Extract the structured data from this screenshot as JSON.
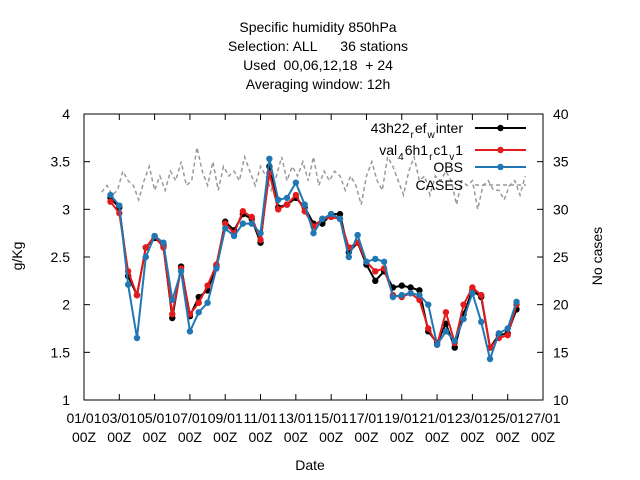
{
  "chart_data": {
    "type": "line",
    "title_lines": [
      "Specific humidity 850hPa",
      "Selection: ALL      36 stations",
      "Used  00,06,12,18  + 24",
      "Averaging window: 12h"
    ],
    "xlabel": "Date",
    "ylabel": "g/Kg",
    "y2label": "No cases",
    "xlim": [
      0,
      26
    ],
    "ylim": [
      1,
      4
    ],
    "y2lim": [
      10,
      40
    ],
    "x_ticks": [
      {
        "value": 0,
        "line1": "01/01",
        "line2": "00Z"
      },
      {
        "value": 2,
        "line1": "03/01",
        "line2": "00Z"
      },
      {
        "value": 4,
        "line1": "05/01",
        "line2": "00Z"
      },
      {
        "value": 6,
        "line1": "07/01",
        "line2": "00Z"
      },
      {
        "value": 8,
        "line1": "09/01",
        "line2": "00Z"
      },
      {
        "value": 10,
        "line1": "11/01",
        "line2": "00Z"
      },
      {
        "value": 12,
        "line1": "13/01",
        "line2": "00Z"
      },
      {
        "value": 14,
        "line1": "15/01",
        "line2": "00Z"
      },
      {
        "value": 16,
        "line1": "17/01",
        "line2": "00Z"
      },
      {
        "value": 18,
        "line1": "19/01",
        "line2": "00Z"
      },
      {
        "value": 20,
        "line1": "21/01",
        "line2": "00Z"
      },
      {
        "value": 22,
        "line1": "23/01",
        "line2": "00Z"
      },
      {
        "value": 24,
        "line1": "25/01",
        "line2": "00Z"
      },
      {
        "value": 26,
        "line1": "27/01",
        "line2": "00Z"
      }
    ],
    "y_ticks": [
      "1",
      "1.5",
      "2",
      "2.5",
      "3",
      "3.5",
      "4"
    ],
    "y2_ticks": [
      "10",
      "15",
      "20",
      "25",
      "30",
      "35",
      "40"
    ],
    "legend_position": "top-right",
    "grid": false,
    "x": [
      1.5,
      2.0,
      2.5,
      3.0,
      3.5,
      4.0,
      4.5,
      5.0,
      5.5,
      6.0,
      6.5,
      7.0,
      7.5,
      8.0,
      8.5,
      9.0,
      9.5,
      10.0,
      10.5,
      11.0,
      11.5,
      12.0,
      12.5,
      13.0,
      13.5,
      14.0,
      14.5,
      15.0,
      15.5,
      16.0,
      16.5,
      17.0,
      17.5,
      18.0,
      18.5,
      19.0,
      19.5,
      20.0,
      20.5,
      21.0,
      21.5,
      22.0,
      22.5,
      23.0,
      23.5,
      24.0,
      24.5
    ],
    "series": [
      {
        "name": "43h22_r ef_w inter",
        "legend_label": {
          "t1": "43h22",
          "s1": "r",
          "t2": "ef",
          "s2": "w",
          "t3": "inter"
        },
        "color": "#000000",
        "axis": "left",
        "values": [
          3.12,
          3.02,
          2.3,
          2.1,
          2.6,
          2.7,
          2.62,
          1.86,
          2.4,
          1.88,
          2.08,
          2.15,
          2.4,
          2.87,
          2.78,
          2.95,
          2.9,
          2.65,
          3.45,
          3.02,
          3.05,
          3.12,
          3.02,
          2.85,
          2.85,
          2.95,
          2.95,
          2.55,
          2.65,
          2.42,
          2.25,
          2.35,
          2.18,
          2.2,
          2.18,
          2.15,
          1.72,
          1.6,
          1.8,
          1.55,
          1.9,
          2.15,
          2.08,
          1.55,
          1.68,
          1.7,
          1.95
        ]
      },
      {
        "name": "val_4 6h1_r c1_v 1",
        "legend_label": {
          "t1": "val",
          "s1": "4",
          "t2": "6h1",
          "s2": "r",
          "t3": "c1",
          "s3": "v",
          "t4": "1"
        },
        "color": "#e41a1c",
        "axis": "left",
        "values": [
          3.08,
          2.96,
          2.35,
          2.1,
          2.6,
          2.72,
          2.6,
          1.9,
          2.38,
          1.9,
          2.02,
          2.2,
          2.42,
          2.85,
          2.75,
          2.98,
          2.92,
          2.68,
          3.38,
          3.0,
          3.05,
          3.15,
          2.98,
          2.82,
          2.9,
          2.92,
          2.9,
          2.6,
          2.65,
          2.45,
          2.35,
          2.38,
          2.1,
          2.08,
          2.12,
          2.05,
          1.75,
          1.58,
          1.92,
          1.6,
          2.0,
          2.18,
          2.1,
          1.55,
          1.65,
          1.68,
          2.0
        ]
      },
      {
        "name": "OBS",
        "legend_label": {
          "t1": "OBS"
        },
        "color": "#1f78b4",
        "axis": "left",
        "values": [
          3.15,
          3.04,
          2.21,
          1.65,
          2.5,
          2.72,
          2.65,
          2.05,
          2.35,
          1.72,
          1.92,
          2.02,
          2.38,
          2.8,
          2.72,
          2.85,
          2.85,
          2.75,
          3.53,
          3.1,
          3.12,
          3.28,
          3.05,
          2.75,
          2.9,
          2.95,
          2.9,
          2.5,
          2.73,
          2.45,
          2.48,
          2.45,
          2.08,
          2.1,
          2.12,
          2.1,
          2.0,
          1.58,
          1.72,
          1.62,
          1.85,
          2.12,
          1.82,
          1.43,
          1.7,
          1.75,
          2.03
        ]
      },
      {
        "name": "CASES",
        "legend_label": {
          "t1": "CASES"
        },
        "color": "#999999",
        "dashed": true,
        "axis": "right",
        "x": [
          1.0,
          1.3,
          1.6,
          1.9,
          2.2,
          2.5,
          2.8,
          3.1,
          3.4,
          3.7,
          4.0,
          4.3,
          4.6,
          4.9,
          5.2,
          5.5,
          5.8,
          6.1,
          6.4,
          6.7,
          7.0,
          7.3,
          7.6,
          7.9,
          8.2,
          8.5,
          8.8,
          9.1,
          9.4,
          9.7,
          10.0,
          10.3,
          10.6,
          10.9,
          11.2,
          11.5,
          11.8,
          12.1,
          12.4,
          12.7,
          13.0,
          13.3,
          13.6,
          13.9,
          14.2,
          14.5,
          14.8,
          15.1,
          15.4,
          15.7,
          16.0,
          16.3,
          16.6,
          16.9,
          17.2,
          17.5,
          17.8,
          18.1,
          18.4,
          18.7,
          19.0,
          19.3,
          19.6,
          19.9,
          20.2,
          20.5,
          20.8,
          21.1,
          21.4,
          21.7,
          22.0,
          22.3,
          22.6,
          22.9,
          23.2,
          23.5,
          23.8,
          24.1,
          24.4,
          24.7,
          25.0
        ],
        "values": [
          31.8,
          32.5,
          31.5,
          32.0,
          34.0,
          33.0,
          32.5,
          31.0,
          33.0,
          34.5,
          32.0,
          33.5,
          32.0,
          34.0,
          33.0,
          35.0,
          32.5,
          33.0,
          36.5,
          34.0,
          32.5,
          35.0,
          32.0,
          34.5,
          33.5,
          34.0,
          33.0,
          35.5,
          34.0,
          32.5,
          34.5,
          33.5,
          32.0,
          33.5,
          35.5,
          33.0,
          34.5,
          33.5,
          35.0,
          33.0,
          35.5,
          32.5,
          34.0,
          33.0,
          34.0,
          33.5,
          32.0,
          33.5,
          32.5,
          30.5,
          33.5,
          35.0,
          33.0,
          32.0,
          35.5,
          34.5,
          33.0,
          31.5,
          34.0,
          35.5,
          33.0,
          33.5,
          31.5,
          33.5,
          33.0,
          34.0,
          33.0,
          30.5,
          33.0,
          32.5,
          33.0,
          30.0,
          32.5,
          33.0,
          32.0,
          32.0,
          31.0,
          32.5,
          33.0,
          31.5,
          33.5
        ]
      }
    ]
  }
}
